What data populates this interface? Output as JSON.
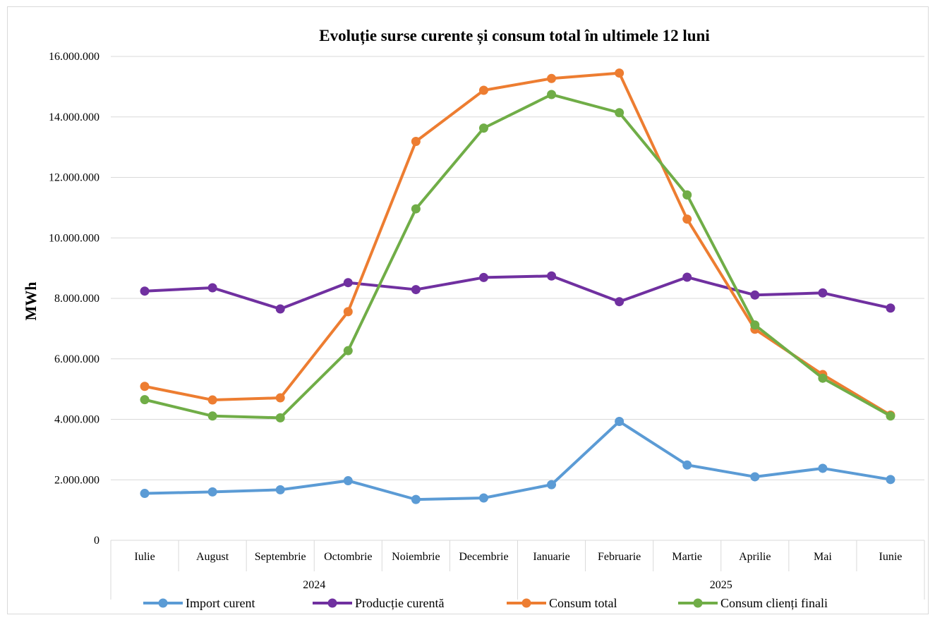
{
  "chart_data": {
    "type": "line",
    "title": "Evoluție surse curente și consum total în ultimele 12 luni",
    "xlabel": "",
    "ylabel": "MWh",
    "ylim": [
      0,
      16000000
    ],
    "y_ticks": [
      0,
      2000000,
      4000000,
      6000000,
      8000000,
      10000000,
      12000000,
      14000000,
      16000000
    ],
    "y_tick_labels": [
      "0",
      "2.000.000",
      "4.000.000",
      "6.000.000",
      "8.000.000",
      "10.000.000",
      "12.000.000",
      "14.000.000",
      "16.000.000"
    ],
    "grid": true,
    "legend_position": "bottom",
    "categories": [
      "Iulie",
      "August",
      "Septembrie",
      "Octombrie",
      "Noiembrie",
      "Decembrie",
      "Ianuarie",
      "Februarie",
      "Martie",
      "Aprilie",
      "Mai",
      "Iunie"
    ],
    "category_groups": [
      {
        "label": "2024",
        "count": 6
      },
      {
        "label": "2025",
        "count": 6
      }
    ],
    "series": [
      {
        "name": "Import curent",
        "color": "#5b9bd5",
        "values": [
          1550000,
          1600000,
          1670000,
          1970000,
          1350000,
          1400000,
          1840000,
          3930000,
          2490000,
          2100000,
          2380000,
          2010000
        ]
      },
      {
        "name": "Producție curentă",
        "color": "#7030a0",
        "values": [
          8240000,
          8350000,
          7650000,
          8520000,
          8290000,
          8690000,
          8740000,
          7890000,
          8700000,
          8110000,
          8180000,
          7680000
        ]
      },
      {
        "name": "Consum total",
        "color": "#ed7d31",
        "values": [
          5090000,
          4640000,
          4710000,
          7560000,
          13190000,
          14880000,
          15270000,
          15450000,
          10620000,
          6980000,
          5480000,
          4140000
        ]
      },
      {
        "name": "Consum clienți finali",
        "color": "#70ad47",
        "values": [
          4650000,
          4110000,
          4050000,
          6270000,
          10960000,
          13630000,
          14740000,
          14140000,
          11420000,
          7120000,
          5360000,
          4110000
        ]
      }
    ]
  }
}
